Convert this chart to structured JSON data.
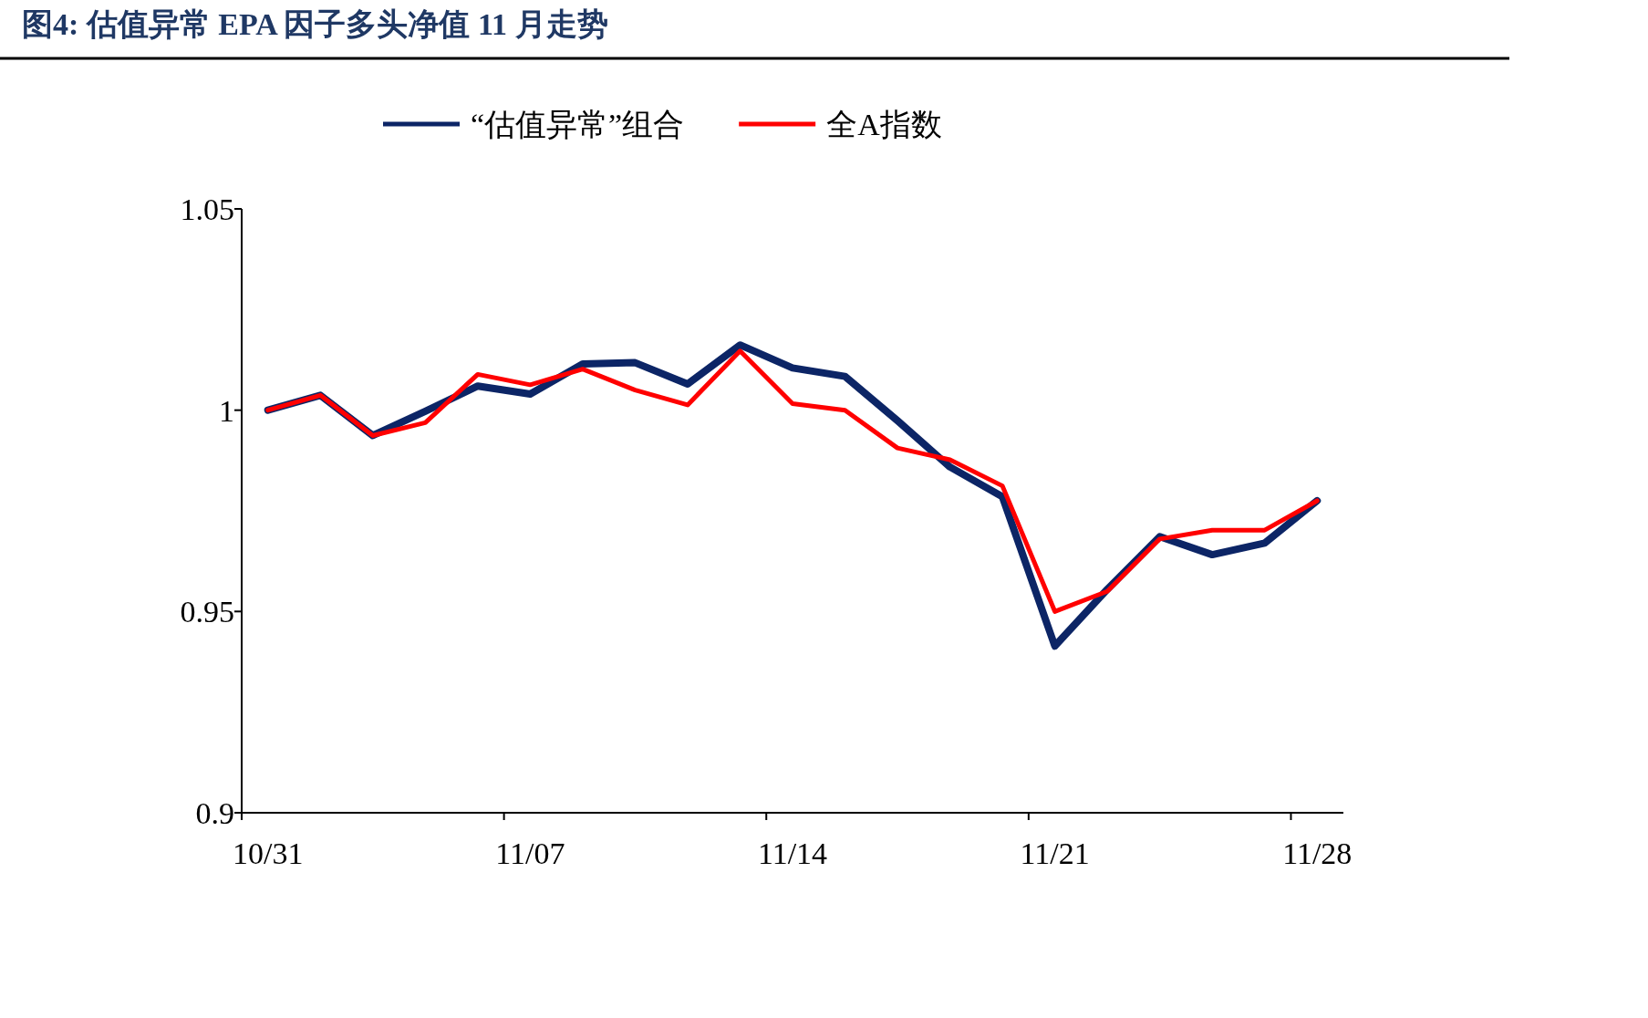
{
  "chart_data": {
    "type": "line",
    "title": "图4:  估值异常 EPA 因子多头净值 11 月走势",
    "categories": [
      "10/31",
      null,
      null,
      null,
      null,
      "11/07",
      null,
      null,
      null,
      null,
      "11/14",
      null,
      null,
      null,
      null,
      "11/21",
      null,
      null,
      null,
      null,
      "11/28"
    ],
    "series": [
      {
        "name": "“估值异常”组合",
        "color": "#0c2566",
        "values": [
          1.0,
          1.0037,
          0.9937,
          0.9997,
          1.006,
          1.004,
          1.0115,
          1.0118,
          1.0065,
          1.0162,
          1.0105,
          1.0084,
          0.9974,
          0.9859,
          0.9785,
          0.9414,
          0.9555,
          0.9686,
          0.9641,
          0.967,
          0.9775
        ]
      },
      {
        "name": "全A指数",
        "color": "#ff0000",
        "values": [
          1.0,
          1.0037,
          0.9937,
          0.9969,
          1.0089,
          1.0063,
          1.0102,
          1.005,
          1.0013,
          1.0147,
          1.0016,
          1.0,
          0.9906,
          0.9877,
          0.9812,
          0.95,
          0.955,
          0.968,
          0.9702,
          0.9702,
          0.9775
        ]
      }
    ],
    "ylim": [
      0.9,
      1.05
    ],
    "yticks": [
      0.9,
      0.95,
      {
        "value": 1,
        "label": "1"
      },
      1.05
    ],
    "grid": false,
    "legend": "top",
    "marker": "none",
    "line_style": "solid"
  }
}
